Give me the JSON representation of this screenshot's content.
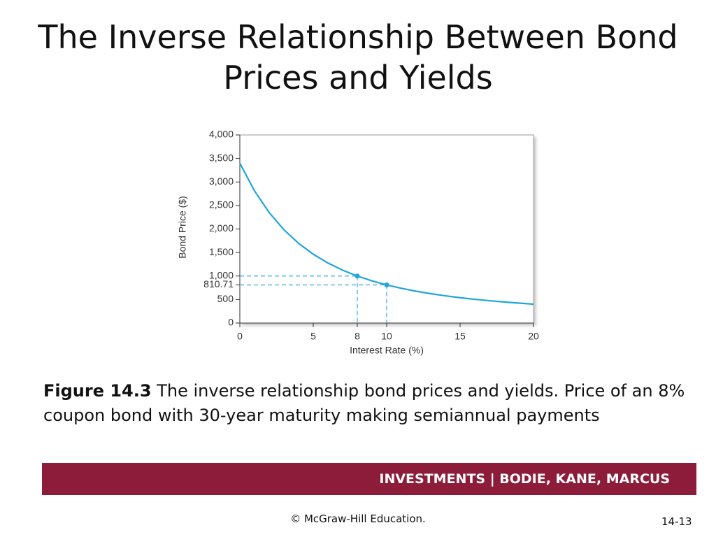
{
  "title": "The Inverse Relationship Between Bond Prices and Yields",
  "caption": {
    "label": "Figure 14.3",
    "text": "The inverse relationship bond prices and yields. Price of an 8% coupon bond with 30-year maturity making semiannual payments"
  },
  "footer": {
    "banner": "INVESTMENTS | BODIE, KANE, MARCUS",
    "copyright": "© McGraw-Hill Education.",
    "page": "14-13"
  },
  "chart_data": {
    "type": "line",
    "x_label": "Interest Rate (%)",
    "y_label": "Bond Price ($)",
    "x": [
      0,
      1,
      2,
      3,
      4,
      5,
      6,
      7,
      8,
      9,
      10,
      11,
      12,
      13,
      14,
      15,
      16,
      17,
      18,
      19,
      20
    ],
    "series": [
      {
        "color": "#1fa5dc",
        "values": [
          3400,
          2810.6,
          2348.6,
          1984.5,
          1695.2,
          1463.7,
          1276.8,
          1124.7,
          1000,
          896.8,
          810.71,
          738.2,
          676.8,
          624.2,
          578.8,
          539.4,
          505.0,
          474.6,
          447.6,
          423.6,
          402.0
        ]
      }
    ],
    "markers": [
      {
        "x": 8,
        "y": 1000
      },
      {
        "x": 10,
        "y": 810.71
      }
    ],
    "xlim": [
      0,
      20
    ],
    "xticks": [
      0,
      5,
      8,
      10,
      15,
      20
    ],
    "ylim": [
      0,
      4000
    ],
    "yticks": [
      0,
      500,
      810.71,
      {
        "value": 1000,
        "label": "1,000"
      },
      {
        "value": 1500,
        "label": "1,500"
      },
      {
        "value": 2000,
        "label": "2,000"
      },
      {
        "value": 2500,
        "label": "2,500"
      },
      {
        "value": 3000,
        "label": "3,000"
      },
      {
        "value": 3500,
        "label": "3,500"
      },
      {
        "value": 4000,
        "label": "4,000"
      }
    ],
    "grid": false
  }
}
